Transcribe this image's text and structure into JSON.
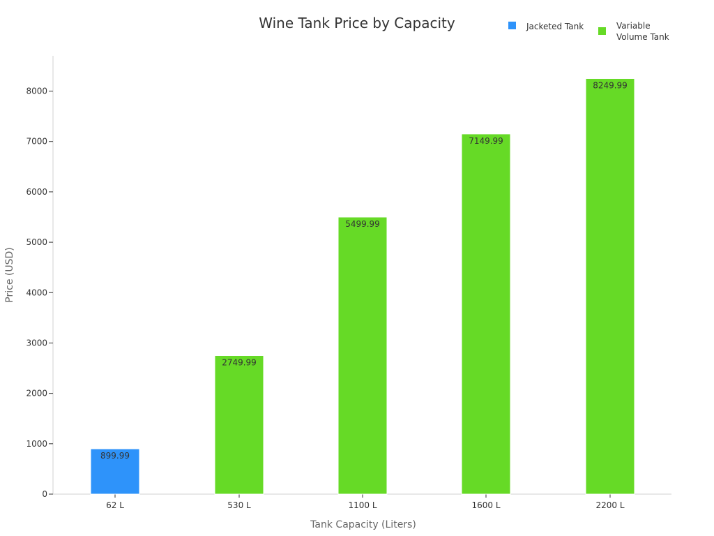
{
  "chart_data": {
    "type": "bar",
    "title": "Wine Tank Price by Capacity",
    "xlabel": "Tank Capacity (Liters)",
    "ylabel": "Price (USD)",
    "categories": [
      "62 L",
      "530 L",
      "1100 L",
      "1600 L",
      "2200 L"
    ],
    "series": [
      {
        "name": "Jacketed Tank",
        "color": "#2e93fa",
        "values": [
          899.99,
          null,
          null,
          null,
          null
        ]
      },
      {
        "name": "Variable Volume Tank",
        "name_lines": [
          "Variable",
          "Volume Tank"
        ],
        "color": "#66da26",
        "values": [
          null,
          2749.99,
          5499.99,
          7149.99,
          8249.99
        ]
      }
    ],
    "ylim": [
      0,
      8700
    ],
    "yticks": [
      0,
      1000,
      2000,
      3000,
      4000,
      5000,
      6000,
      7000,
      8000
    ],
    "data_labels": true,
    "grid": false,
    "legend_position": "top-right"
  }
}
